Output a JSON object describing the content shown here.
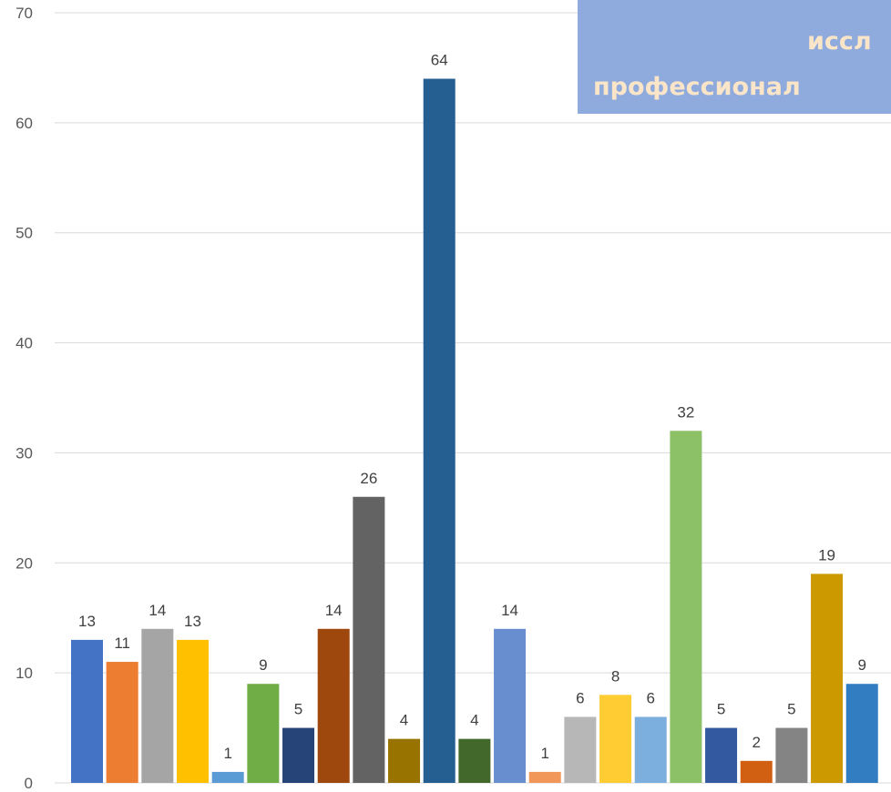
{
  "chart_data": {
    "type": "bar",
    "title_lines": [
      "иссл",
      "профессионал"
    ],
    "xlabel": "",
    "ylabel": "",
    "ylim": [
      0,
      70
    ],
    "yticks": [
      0,
      10,
      20,
      30,
      40,
      50,
      60,
      70
    ],
    "grid": true,
    "values": [
      13,
      11,
      14,
      13,
      1,
      9,
      5,
      14,
      26,
      4,
      64,
      4,
      14,
      1,
      6,
      8,
      6,
      32,
      5,
      2,
      5,
      19,
      9
    ],
    "colors": [
      "#4472c4",
      "#ed7d31",
      "#a5a5a5",
      "#ffc000",
      "#5b9bd5",
      "#70ad47",
      "#264478",
      "#9e480e",
      "#636363",
      "#997300",
      "#255e91",
      "#43682b",
      "#698ed0",
      "#f1975a",
      "#b7b7b7",
      "#ffcd33",
      "#7cafdd",
      "#8cc168",
      "#335aa1",
      "#d26012",
      "#848484",
      "#cc9a00",
      "#327dc2"
    ]
  }
}
